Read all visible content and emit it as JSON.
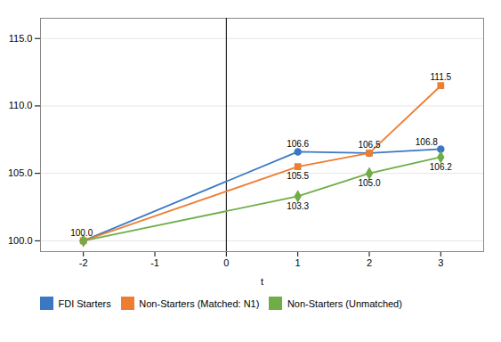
{
  "chart_data": {
    "type": "line",
    "xlabel": "t",
    "x": [
      -2,
      1,
      2,
      3
    ],
    "series": [
      {
        "name": "FDI Starters",
        "color": "#3B78C3",
        "marker": "circle",
        "values": [
          100.0,
          106.6,
          106.5,
          106.8
        ],
        "value_labels": [
          "100.0",
          "106.6",
          "106.5",
          "106.8"
        ]
      },
      {
        "name": "Non-Starters (Matched: N1)",
        "color": "#ED7D31",
        "marker": "square",
        "values": [
          100.0,
          105.5,
          106.5,
          111.5
        ],
        "value_labels": [
          null,
          "105.5",
          null,
          "111.5"
        ]
      },
      {
        "name": "Non-Starters (Unmatched)",
        "color": "#70AD47",
        "marker": "diamond",
        "values": [
          100.0,
          103.3,
          105.0,
          106.2
        ],
        "value_labels": [
          null,
          "103.3",
          "105.0",
          "106.2"
        ]
      }
    ],
    "xlim": [
      -2.6,
      3.6
    ],
    "xticks": [
      -2,
      -1,
      0,
      1,
      2,
      3
    ],
    "ylim": [
      99.2,
      116.5
    ],
    "yticks": [
      {
        "value": 100.0,
        "label": "100.0"
      },
      {
        "value": 105.0,
        "label": "105.0"
      },
      {
        "value": 110.0,
        "label": "110.0"
      },
      {
        "value": 115.0,
        "label": "115.0"
      }
    ],
    "vline": 0,
    "grid": true,
    "data_labels": true,
    "legend": "bottom"
  }
}
